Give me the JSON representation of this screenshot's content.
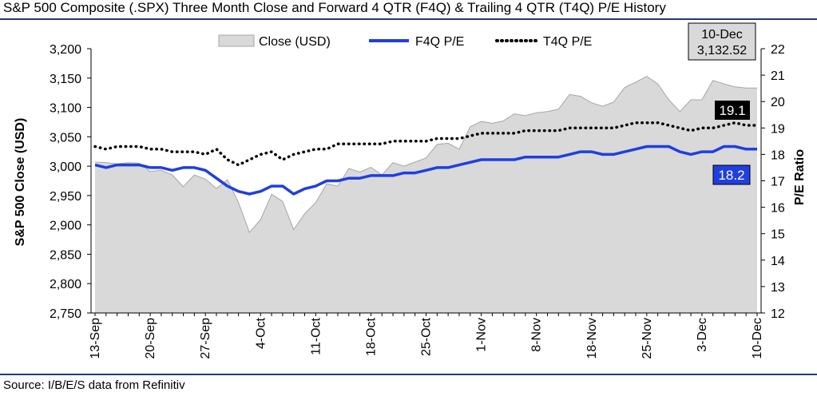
{
  "title": "S&P 500 Composite (.SPX) Three Month Close and Forward 4 QTR (F4Q) & Trailing 4 QTR (T4Q) P/E History",
  "source": "Source: I/B/E/S data from Refinitiv",
  "chart_data": {
    "type": "area",
    "ylabel_left": "S&P 500 Close (USD)",
    "ylabel_right": "P/E Ratio",
    "ylim_left": [
      2750,
      3200
    ],
    "ylim_right": [
      12,
      22
    ],
    "yticks_left": [
      "2,750",
      "2,800",
      "2,850",
      "2,900",
      "2,950",
      "3,000",
      "3,050",
      "3,100",
      "3,150",
      "3,200"
    ],
    "yticks_right": [
      "12",
      "13",
      "14",
      "15",
      "16",
      "17",
      "18",
      "19",
      "20",
      "21",
      "22"
    ],
    "x_tick_labels": [
      "13-Sep",
      "20-Sep",
      "27-Sep",
      "4-Oct",
      "11-Oct",
      "18-Oct",
      "25-Oct",
      "1-Nov",
      "8-Nov",
      "18-Nov",
      "25-Nov",
      "3-Dec",
      "10-Dec"
    ],
    "x_tick_index": [
      0,
      5,
      10,
      15,
      20,
      25,
      30,
      35,
      40,
      45,
      50,
      55,
      60
    ],
    "legend": [
      "Close (USD)",
      "F4Q P/E",
      "T4Q P/E"
    ],
    "legend_position": "top",
    "annotation_box": {
      "date": "10-Dec",
      "value": "3,132.52"
    },
    "last_label_t4q": "19.1",
    "last_label_f4q": "18.2",
    "colors": {
      "area_fill": "#d9d9d9",
      "area_line": "#a6a6a6",
      "f4q": "#1f3fe0",
      "t4q": "#000000",
      "f4q_label_bg": "#1f3fe0",
      "t4q_label_bg": "#000000"
    },
    "series": [
      {
        "name": "Close (USD)",
        "axis": "left",
        "values": [
          3007,
          3006,
          3004,
          3006,
          3005,
          2991,
          2993,
          2985,
          2965,
          2985,
          2978,
          2962,
          2977,
          2938,
          2887,
          2909,
          2952,
          2940,
          2892,
          2919,
          2938,
          2970,
          2966,
          2996,
          2990,
          2998,
          2985,
          3006,
          3000,
          3007,
          3014,
          3037,
          3039,
          3029,
          3067,
          3076,
          3073,
          3077,
          3089,
          3086,
          3091,
          3093,
          3097,
          3122,
          3119,
          3108,
          3102,
          3109,
          3134,
          3143,
          3153,
          3140,
          3113,
          3093,
          3113,
          3113,
          3146,
          3140,
          3135,
          3133,
          3133
        ]
      },
      {
        "name": "F4Q P/E",
        "axis": "right",
        "values": [
          17.6,
          17.5,
          17.6,
          17.6,
          17.6,
          17.5,
          17.5,
          17.4,
          17.5,
          17.5,
          17.4,
          17.1,
          16.8,
          16.6,
          16.5,
          16.6,
          16.8,
          16.8,
          16.5,
          16.7,
          16.8,
          17.0,
          17.0,
          17.1,
          17.1,
          17.2,
          17.2,
          17.2,
          17.3,
          17.3,
          17.4,
          17.5,
          17.5,
          17.6,
          17.7,
          17.8,
          17.8,
          17.8,
          17.8,
          17.9,
          17.9,
          17.9,
          17.9,
          18.0,
          18.1,
          18.1,
          18.0,
          18.0,
          18.1,
          18.2,
          18.3,
          18.3,
          18.3,
          18.1,
          18.0,
          18.1,
          18.1,
          18.3,
          18.3,
          18.2,
          18.2
        ]
      },
      {
        "name": "T4Q P/E",
        "axis": "right",
        "values": [
          18.3,
          18.2,
          18.3,
          18.3,
          18.3,
          18.2,
          18.2,
          18.1,
          18.1,
          18.1,
          18.0,
          18.2,
          17.8,
          17.6,
          17.8,
          18.0,
          18.1,
          17.8,
          18.0,
          18.1,
          18.2,
          18.2,
          18.4,
          18.4,
          18.4,
          18.4,
          18.4,
          18.5,
          18.5,
          18.5,
          18.5,
          18.6,
          18.6,
          18.6,
          18.7,
          18.8,
          18.8,
          18.8,
          18.8,
          18.9,
          18.9,
          18.9,
          18.9,
          19.0,
          19.0,
          19.0,
          19.0,
          19.0,
          19.1,
          19.2,
          19.2,
          19.2,
          19.1,
          19.0,
          18.9,
          19.0,
          19.0,
          19.1,
          19.2,
          19.1,
          19.1
        ]
      }
    ]
  }
}
